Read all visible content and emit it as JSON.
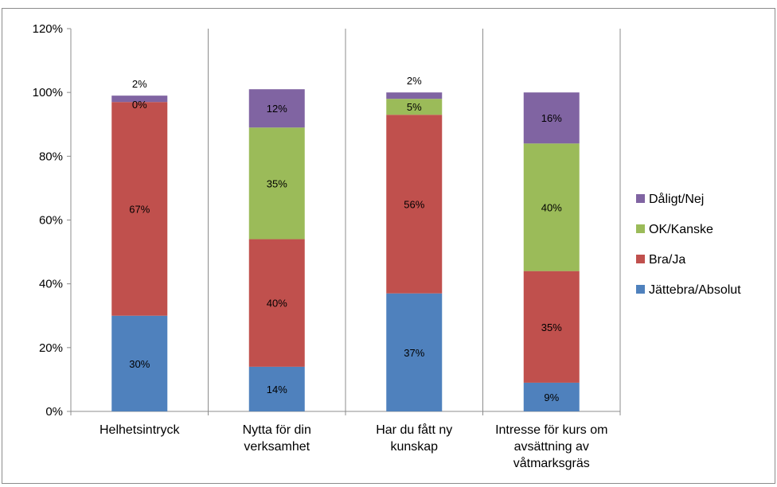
{
  "chart_data": {
    "type": "bar",
    "stacked": true,
    "categories": [
      [
        "Helhetsintryck"
      ],
      [
        "Nytta för din",
        "verksamhet"
      ],
      [
        "Har du fått ny",
        "kunskap"
      ],
      [
        "Intresse för kurs om",
        "avsättning av",
        "våtmarksgräs"
      ]
    ],
    "series": [
      {
        "name": "Jättebra/Absolut",
        "color": "#4f81bd",
        "values": [
          30,
          14,
          37,
          9
        ],
        "labels": [
          "30%",
          "14%",
          "37%",
          "9%"
        ]
      },
      {
        "name": "Bra/Ja",
        "color": "#c0504d",
        "values": [
          67,
          40,
          56,
          35
        ],
        "labels": [
          "67%",
          "40%",
          "56%",
          "35%"
        ]
      },
      {
        "name": "OK/Kanske",
        "color": "#9bbb59",
        "values": [
          0,
          35,
          5,
          40
        ],
        "labels": [
          "0%",
          "35%",
          "5%",
          "40%"
        ]
      },
      {
        "name": "Dåligt/Nej",
        "color": "#8064a2",
        "values": [
          2,
          12,
          2,
          16
        ],
        "labels": [
          "2%",
          "12%",
          "2%",
          "16%"
        ]
      }
    ],
    "yticks": [
      "0%",
      "20%",
      "40%",
      "60%",
      "80%",
      "100%",
      "120%"
    ],
    "ylim": [
      0,
      120
    ],
    "grid": "vertical",
    "legend": "right",
    "title": "",
    "xlabel": "",
    "ylabel": ""
  }
}
